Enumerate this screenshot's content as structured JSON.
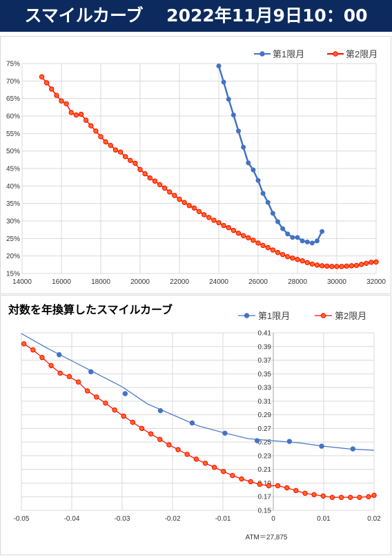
{
  "header": {
    "title": "スマイルカーブ　 2022年11月9日10：00"
  },
  "colors": {
    "header_bg": "#0c2a5e",
    "series1": "#4472c4",
    "series2": "#ff0000",
    "series2_fill": "#ff6a1a",
    "grid": "#d9d9d9"
  },
  "chart_data": [
    {
      "type": "line",
      "title": "",
      "xlabel": "",
      "ylabel": "",
      "xlim": [
        14000,
        32000
      ],
      "ylim": [
        0.15,
        0.75
      ],
      "grid": true,
      "legend_position": "top-right",
      "x_ticks": [
        "14000",
        "16000",
        "18000",
        "20000",
        "22000",
        "24000",
        "26000",
        "28000",
        "30000",
        "32000"
      ],
      "y_ticks": [
        "15%",
        "20%",
        "25%",
        "30%",
        "35%",
        "40%",
        "45%",
        "50%",
        "55%",
        "60%",
        "65%",
        "70%",
        "75%"
      ],
      "series": [
        {
          "name": "第1限月",
          "x": [
            24000,
            24250,
            24500,
            24750,
            25000,
            25250,
            25500,
            25750,
            26000,
            26250,
            26500,
            26750,
            27000,
            27250,
            27500,
            27750,
            28000,
            28250,
            28500,
            28750,
            29000,
            29250
          ],
          "y": [
            0.743,
            0.697,
            0.648,
            0.603,
            0.557,
            0.511,
            0.466,
            0.446,
            0.416,
            0.379,
            0.353,
            0.322,
            0.298,
            0.278,
            0.263,
            0.253,
            0.253,
            0.243,
            0.24,
            0.237,
            0.243,
            0.27
          ]
        },
        {
          "name": "第2限月",
          "x": [
            15000,
            15250,
            15500,
            15750,
            16000,
            16250,
            16500,
            16750,
            17000,
            17250,
            17500,
            17750,
            18000,
            18250,
            18500,
            18750,
            19000,
            19250,
            19500,
            19750,
            20000,
            20250,
            20500,
            20750,
            21000,
            21250,
            21500,
            21750,
            22000,
            22250,
            22500,
            22750,
            23000,
            23250,
            23500,
            23750,
            24000,
            24250,
            24500,
            24750,
            25000,
            25250,
            25500,
            25750,
            26000,
            26250,
            26500,
            26750,
            27000,
            27250,
            27500,
            27750,
            28000,
            28250,
            28500,
            28750,
            29000,
            29250,
            29500,
            29750,
            30000,
            30250,
            30500,
            30750,
            31000,
            31250,
            31500,
            31750,
            32000
          ],
          "y": [
            0.712,
            0.695,
            0.677,
            0.659,
            0.643,
            0.635,
            0.61,
            0.603,
            0.605,
            0.588,
            0.572,
            0.557,
            0.541,
            0.526,
            0.516,
            0.503,
            0.497,
            0.484,
            0.473,
            0.465,
            0.447,
            0.435,
            0.423,
            0.414,
            0.404,
            0.394,
            0.383,
            0.373,
            0.362,
            0.353,
            0.344,
            0.337,
            0.327,
            0.318,
            0.31,
            0.302,
            0.295,
            0.287,
            0.281,
            0.273,
            0.265,
            0.258,
            0.252,
            0.245,
            0.237,
            0.23,
            0.224,
            0.217,
            0.21,
            0.204,
            0.198,
            0.194,
            0.19,
            0.186,
            0.181,
            0.177,
            0.174,
            0.172,
            0.171,
            0.17,
            0.17,
            0.17,
            0.171,
            0.172,
            0.173,
            0.176,
            0.179,
            0.182,
            0.183
          ]
        }
      ]
    },
    {
      "type": "line",
      "title": "対数を年換算したスマイルカーブ",
      "xlabel": "",
      "ylabel": "",
      "xlim": [
        -0.05,
        0.02
      ],
      "ylim": [
        0.15,
        0.41
      ],
      "grid": true,
      "legend_position": "top-right",
      "annotation": "ATM＝27,875",
      "x_ticks": [
        "-0.05",
        "-0.04",
        "-0.03",
        "-0.02",
        "-0.01",
        "0",
        "0.01",
        "0.02"
      ],
      "y_ticks": [
        "0.15",
        "0.17",
        "0.19",
        "0.21",
        "0.23",
        "0.25",
        "0.27",
        "0.29",
        "0.31",
        "0.33",
        "0.35",
        "0.37",
        "0.39",
        "0.41"
      ],
      "series": [
        {
          "name": "第1限月",
          "x": [
            -0.0425,
            -0.0362,
            -0.0294,
            -0.0224,
            -0.0161,
            -0.0096,
            -0.0032,
            0.0032,
            0.0096,
            0.0158
          ],
          "y": [
            0.378,
            0.353,
            0.321,
            0.296,
            0.278,
            0.263,
            0.252,
            0.251,
            0.244,
            0.24
          ],
          "curve_x": [
            -0.05,
            -0.045,
            -0.04,
            -0.035,
            -0.03,
            -0.025,
            -0.02,
            -0.015,
            -0.01,
            -0.005,
            0.0,
            0.005,
            0.01,
            0.015,
            0.02
          ],
          "curve_y": [
            0.409,
            0.388,
            0.369,
            0.35,
            0.331,
            0.306,
            0.29,
            0.274,
            0.264,
            0.255,
            0.252,
            0.249,
            0.244,
            0.24,
            0.238
          ]
        },
        {
          "name": "第2限月",
          "x": [
            -0.0495,
            -0.0477,
            -0.0459,
            -0.0441,
            -0.0423,
            -0.0405,
            -0.0387,
            -0.0369,
            -0.0351,
            -0.0333,
            -0.0315,
            -0.0297,
            -0.0279,
            -0.0261,
            -0.0243,
            -0.0225,
            -0.0207,
            -0.0189,
            -0.0171,
            -0.0153,
            -0.0135,
            -0.0117,
            -0.0099,
            -0.0081,
            -0.0063,
            -0.0045,
            -0.0027,
            -0.0009,
            0.0009,
            0.0027,
            0.0045,
            0.0063,
            0.0081,
            0.0099,
            0.0117,
            0.0135,
            0.0153,
            0.0171,
            0.0189,
            0.02
          ],
          "y": [
            0.394,
            0.385,
            0.374,
            0.362,
            0.351,
            0.346,
            0.338,
            0.325,
            0.316,
            0.307,
            0.297,
            0.288,
            0.279,
            0.27,
            0.262,
            0.254,
            0.246,
            0.239,
            0.232,
            0.225,
            0.219,
            0.213,
            0.207,
            0.201,
            0.196,
            0.192,
            0.188,
            0.186,
            0.186,
            0.183,
            0.179,
            0.175,
            0.173,
            0.171,
            0.169,
            0.169,
            0.169,
            0.169,
            0.17,
            0.172
          ]
        }
      ]
    }
  ]
}
